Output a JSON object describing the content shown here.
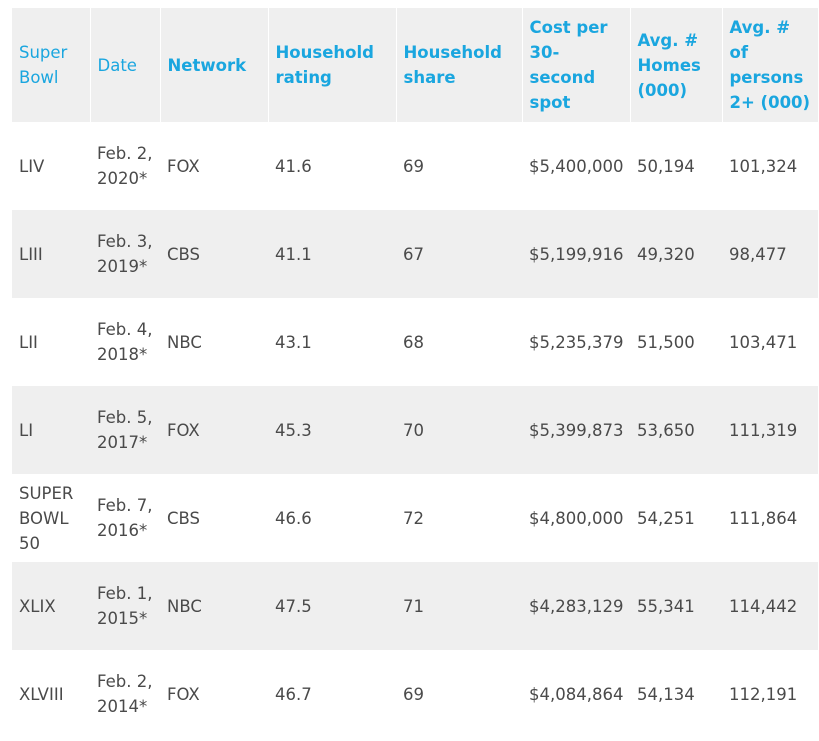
{
  "table": {
    "headers": [
      "Super Bowl",
      "Date",
      "Network",
      "Household rating",
      "Household share",
      "Cost per 30-second spot",
      "Avg. # Homes (000)",
      "Avg. # of persons 2+ (000)"
    ],
    "rows": [
      [
        "LIV",
        "Feb. 2, 2020*",
        "FOX",
        "41.6",
        "69",
        "$5,400,000",
        "50,194",
        "101,324"
      ],
      [
        "LIII",
        "Feb. 3, 2019*",
        "CBS",
        "41.1",
        "67",
        "$5,199,916",
        "49,320",
        "98,477"
      ],
      [
        "LII",
        "Feb. 4, 2018*",
        "NBC",
        "43.1",
        "68",
        "$5,235,379",
        "51,500",
        "103,471"
      ],
      [
        "LI",
        "Feb. 5, 2017*",
        "FOX",
        "45.3",
        "70",
        "$5,399,873",
        "53,650",
        "111,319"
      ],
      [
        "SUPER BOWL 50",
        "Feb. 7, 2016*",
        "CBS",
        "46.6",
        "72",
        "$4,800,000",
        "54,251",
        "111,864"
      ],
      [
        "XLIX",
        "Feb. 1, 2015*",
        "NBC",
        "47.5",
        "71",
        "$4,283,129",
        "55,341",
        "114,442"
      ],
      [
        "XLVIII",
        "Feb. 2, 2014*",
        "FOX",
        "46.7",
        "69",
        "$4,084,864",
        "54,134",
        "112,191"
      ]
    ]
  }
}
